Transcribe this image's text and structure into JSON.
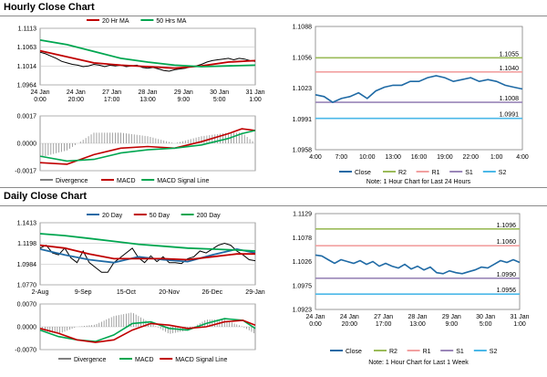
{
  "hourly": {
    "title": "Hourly Close Chart",
    "price": {
      "legend": [
        {
          "name": "20 Hr MA",
          "color": "#c00000"
        },
        {
          "name": "50 Hrs MA",
          "color": "#00a650"
        }
      ],
      "yticks": [
        "1.1113",
        "1.1063",
        "1.1014",
        "1.0964"
      ],
      "xticks": [
        [
          "24 Jan",
          "0:00"
        ],
        [
          "24 Jan",
          "20:00"
        ],
        [
          "27 Jan",
          "17:00"
        ],
        [
          "28 Jan",
          "13:00"
        ],
        [
          "29 Jan",
          "9:00"
        ],
        [
          "30 Jan",
          "5:00"
        ],
        [
          "31 Jan",
          "1:00"
        ]
      ]
    },
    "macd": {
      "yticks": [
        "0.0017",
        "0.0000",
        "-0.0017"
      ],
      "legend": [
        {
          "name": "Divergence",
          "color": "#808080"
        },
        {
          "name": "MACD",
          "color": "#c00000"
        },
        {
          "name": "MACD Signal Line",
          "color": "#00a650"
        }
      ]
    },
    "pivot": {
      "yticks": [
        "1.1088",
        "1.1056",
        "1.1023",
        "1.0991",
        "1.0958"
      ],
      "xticks": [
        "4:00",
        "7:00",
        "10:00",
        "13:00",
        "16:00",
        "19:00",
        "22:00",
        "1:00",
        "4:00"
      ],
      "levels": [
        {
          "key": "R2",
          "label": "1.1055",
          "color": "#9bbb59"
        },
        {
          "key": "R1",
          "label": "1.1040",
          "color": "#f2a0a0"
        },
        {
          "key": "S1",
          "label": "1.1008",
          "color": "#9a86b8"
        },
        {
          "key": "S2",
          "label": "1.0991",
          "color": "#4bb8e8"
        }
      ],
      "legend": [
        {
          "name": "Close",
          "color": "#1f6aa5"
        },
        {
          "name": "R2",
          "color": "#9bbb59"
        },
        {
          "name": "R1",
          "color": "#f2a0a0"
        },
        {
          "name": "S1",
          "color": "#9a86b8"
        },
        {
          "name": "S2",
          "color": "#4bb8e8"
        }
      ],
      "note": "Note: 1 Hour Chart for Last 24 Hours"
    }
  },
  "daily": {
    "title": "Daily Close Chart",
    "price": {
      "legend": [
        {
          "name": "20 Day",
          "color": "#1f6aa5"
        },
        {
          "name": "50 Day",
          "color": "#c00000"
        },
        {
          "name": "200 Day",
          "color": "#00a650"
        }
      ],
      "yticks": [
        "1.1413",
        "1.1198",
        "1.0984",
        "1.0770"
      ],
      "xticks": [
        "2-Aug",
        "9-Sep",
        "15-Oct",
        "20-Nov",
        "26-Dec",
        "29-Jan"
      ]
    },
    "macd": {
      "yticks": [
        "0.0070",
        "0.0000",
        "-0.0070"
      ],
      "legend": [
        {
          "name": "Divergence",
          "color": "#808080"
        },
        {
          "name": "MACD",
          "color": "#00a650"
        },
        {
          "name": "MACD Signal Line",
          "color": "#c00000"
        }
      ]
    },
    "pivot": {
      "yticks": [
        "1.1129",
        "1.1078",
        "1.1026",
        "1.0975",
        "1.0923"
      ],
      "xticks": [
        [
          "24 Jan",
          "0:00"
        ],
        [
          "24 Jan",
          "20:00"
        ],
        [
          "27 Jan",
          "17:00"
        ],
        [
          "28 Jan",
          "13:00"
        ],
        [
          "29 Jan",
          "9:00"
        ],
        [
          "30 Jan",
          "5:00"
        ],
        [
          "31 Jan",
          "1:00"
        ]
      ],
      "levels": [
        {
          "key": "R2",
          "label": "1.1096",
          "color": "#9bbb59"
        },
        {
          "key": "R1",
          "label": "1.1060",
          "color": "#f2a0a0"
        },
        {
          "key": "S1",
          "label": "1.0990",
          "color": "#9a86b8"
        },
        {
          "key": "S2",
          "label": "1.0956",
          "color": "#4bb8e8"
        }
      ],
      "legend": [
        {
          "name": "Close",
          "color": "#1f6aa5"
        },
        {
          "name": "R2",
          "color": "#9bbb59"
        },
        {
          "name": "R1",
          "color": "#f2a0a0"
        },
        {
          "name": "S1",
          "color": "#9a86b8"
        },
        {
          "name": "S2",
          "color": "#4bb8e8"
        }
      ],
      "note": "Note: 1 Hour Chart for Last 1 Week"
    }
  },
  "chart_data": [
    {
      "type": "line",
      "panel": "hourly-price",
      "ylim": [
        1.0964,
        1.1113
      ],
      "series": [
        {
          "name": "Close",
          "color": "#000000",
          "x": [
            0,
            4,
            8,
            12,
            16,
            20,
            24,
            28,
            32,
            36,
            40,
            44,
            48,
            52,
            56,
            60,
            64,
            68,
            72,
            76,
            80,
            84,
            88,
            92,
            96,
            100,
            104,
            108,
            112,
            116,
            120,
            124,
            128,
            132,
            136,
            140,
            144,
            148,
            152,
            156,
            160
          ],
          "values": [
            1.105,
            1.1046,
            1.104,
            1.1034,
            1.1026,
            1.1022,
            1.1018,
            1.1016,
            1.1012,
            1.1014,
            1.1018,
            1.1016,
            1.1012,
            1.1016,
            1.1014,
            1.1016,
            1.1012,
            1.1014,
            1.1016,
            1.101,
            1.1008,
            1.101,
            1.1006,
            1.1002,
            1.1,
            1.1004,
            1.1006,
            1.1008,
            1.1012,
            1.1014,
            1.1018,
            1.1024,
            1.1028,
            1.103,
            1.1032,
            1.1034,
            1.103,
            1.1034,
            1.1032,
            1.1028,
            1.1026
          ]
        },
        {
          "name": "20 Hr MA",
          "color": "#c00000",
          "x": [
            0,
            20,
            40,
            60,
            80,
            100,
            120,
            140,
            160
          ],
          "values": [
            1.1054,
            1.1038,
            1.1022,
            1.1016,
            1.1012,
            1.1008,
            1.1014,
            1.1024,
            1.1028
          ]
        },
        {
          "name": "50 Hrs MA",
          "color": "#00a650",
          "x": [
            0,
            20,
            40,
            60,
            80,
            100,
            120,
            140,
            160
          ],
          "values": [
            1.1082,
            1.107,
            1.1052,
            1.1034,
            1.1024,
            1.1016,
            1.1012,
            1.1014,
            1.1016
          ]
        }
      ]
    },
    {
      "type": "line",
      "panel": "hourly-macd",
      "ylim": [
        -0.0017,
        0.0017
      ],
      "series": [
        {
          "name": "MACD",
          "color": "#c00000",
          "x": [
            0,
            20,
            40,
            60,
            80,
            100,
            120,
            140,
            150,
            160
          ],
          "values": [
            -0.0012,
            -0.0013,
            -0.0007,
            -0.0003,
            -0.0002,
            -0.0003,
            0.0001,
            0.0006,
            0.0009,
            0.0008
          ]
        },
        {
          "name": "MACD Signal Line",
          "color": "#00a650",
          "x": [
            0,
            20,
            40,
            60,
            80,
            100,
            120,
            140,
            150,
            160
          ],
          "values": [
            -0.0008,
            -0.0011,
            -0.001,
            -0.0006,
            -0.0004,
            -0.0003,
            -0.0001,
            0.0003,
            0.0006,
            0.0008
          ]
        }
      ]
    },
    {
      "type": "line",
      "panel": "hourly-pivot",
      "ylim": [
        1.0958,
        1.1088
      ],
      "xlabels": [
        "4:00",
        "7:00",
        "10:00",
        "13:00",
        "16:00",
        "19:00",
        "22:00",
        "1:00",
        "4:00"
      ],
      "series": [
        {
          "name": "Close",
          "color": "#1f6aa5",
          "x": [
            0,
            1,
            2,
            3,
            4,
            5,
            6,
            7,
            8,
            9,
            10,
            11,
            12,
            13,
            14,
            15,
            16,
            17,
            18,
            19,
            20,
            21,
            22,
            23,
            24
          ],
          "values": [
            1.1016,
            1.1014,
            1.1008,
            1.1012,
            1.1014,
            1.1018,
            1.1012,
            1.102,
            1.1024,
            1.1026,
            1.1026,
            1.103,
            1.103,
            1.1034,
            1.1036,
            1.1034,
            1.103,
            1.1032,
            1.1034,
            1.103,
            1.1032,
            1.103,
            1.1026,
            1.1024,
            1.1022
          ]
        }
      ],
      "levels": [
        {
          "name": "R2",
          "value": 1.1055
        },
        {
          "name": "R1",
          "value": 1.104
        },
        {
          "name": "S1",
          "value": 1.1008
        },
        {
          "name": "S2",
          "value": 1.0991
        }
      ]
    },
    {
      "type": "line",
      "panel": "daily-price",
      "ylim": [
        1.077,
        1.1413
      ],
      "series": [
        {
          "name": "Close",
          "color": "#000000",
          "x": [
            0,
            5,
            10,
            15,
            20,
            25,
            30,
            35,
            40,
            45,
            50,
            55,
            60,
            65,
            70,
            75,
            80,
            85,
            90,
            95,
            100,
            105,
            110,
            115,
            120,
            125,
            130,
            135,
            140,
            145,
            150,
            155,
            160,
            165,
            170,
            175
          ],
          "values": [
            1.115,
            1.118,
            1.11,
            1.108,
            1.115,
            1.105,
            1.1,
            1.112,
            1.1,
            1.095,
            1.09,
            1.09,
            1.1,
            1.105,
            1.11,
            1.115,
            1.105,
            1.1,
            1.107,
            1.101,
            1.106,
            1.1,
            1.1,
            1.099,
            1.104,
            1.106,
            1.112,
            1.11,
            1.114,
            1.118,
            1.12,
            1.118,
            1.112,
            1.108,
            1.103,
            1.102
          ]
        },
        {
          "name": "20 Day",
          "color": "#1f6aa5",
          "x": [
            0,
            20,
            40,
            60,
            80,
            100,
            120,
            140,
            160,
            175
          ],
          "values": [
            1.114,
            1.108,
            1.103,
            1.1,
            1.106,
            1.103,
            1.101,
            1.108,
            1.114,
            1.11
          ]
        },
        {
          "name": "50 Day",
          "color": "#c00000",
          "x": [
            0,
            20,
            40,
            60,
            80,
            100,
            120,
            140,
            160,
            175
          ],
          "values": [
            1.118,
            1.115,
            1.109,
            1.104,
            1.104,
            1.104,
            1.103,
            1.106,
            1.109,
            1.109
          ]
        },
        {
          "name": "200 Day",
          "color": "#00a650",
          "x": [
            0,
            20,
            40,
            60,
            80,
            100,
            120,
            140,
            160,
            175
          ],
          "values": [
            1.13,
            1.128,
            1.125,
            1.122,
            1.119,
            1.117,
            1.115,
            1.114,
            1.113,
            1.112
          ]
        }
      ]
    },
    {
      "type": "line",
      "panel": "daily-macd",
      "ylim": [
        -0.007,
        0.007
      ],
      "series": [
        {
          "name": "MACD",
          "color": "#00a650",
          "x": [
            0,
            15,
            30,
            45,
            60,
            75,
            90,
            105,
            120,
            135,
            150,
            165,
            175
          ],
          "values": [
            -0.001,
            -0.003,
            -0.004,
            -0.0045,
            -0.0025,
            0.001,
            0.0015,
            -0.0005,
            -0.001,
            0.001,
            0.0025,
            0.002,
            -0.0005
          ]
        },
        {
          "name": "MACD Signal Line",
          "color": "#c00000",
          "x": [
            0,
            15,
            30,
            45,
            60,
            75,
            90,
            105,
            120,
            135,
            150,
            165,
            175
          ],
          "values": [
            -0.0005,
            -0.002,
            -0.004,
            -0.0048,
            -0.004,
            -0.001,
            0.001,
            0.0005,
            -0.0005,
            0.0,
            0.0015,
            0.002,
            0.0005
          ]
        }
      ]
    },
    {
      "type": "line",
      "panel": "daily-pivot",
      "ylim": [
        1.0923,
        1.1129
      ],
      "series": [
        {
          "name": "Close",
          "color": "#1f6aa5",
          "x": [
            0,
            5,
            10,
            15,
            20,
            25,
            30,
            35,
            40,
            45,
            50,
            55,
            60,
            65,
            70,
            75,
            80,
            85,
            90,
            95,
            100,
            105,
            110,
            115,
            120,
            125,
            130,
            135,
            140,
            145,
            150,
            155,
            160
          ],
          "values": [
            1.104,
            1.1038,
            1.103,
            1.1022,
            1.103,
            1.1026,
            1.1022,
            1.1028,
            1.102,
            1.1026,
            1.1016,
            1.1022,
            1.1016,
            1.1012,
            1.102,
            1.101,
            1.1016,
            1.1008,
            1.1014,
            1.1002,
            1.1,
            1.1006,
            1.1002,
            1.1,
            1.1004,
            1.1008,
            1.1014,
            1.1012,
            1.102,
            1.1028,
            1.1024,
            1.103,
            1.1024
          ]
        }
      ],
      "levels": [
        {
          "name": "R2",
          "value": 1.1096
        },
        {
          "name": "R1",
          "value": 1.106
        },
        {
          "name": "S1",
          "value": 1.099
        },
        {
          "name": "S2",
          "value": 1.0956
        }
      ]
    }
  ]
}
